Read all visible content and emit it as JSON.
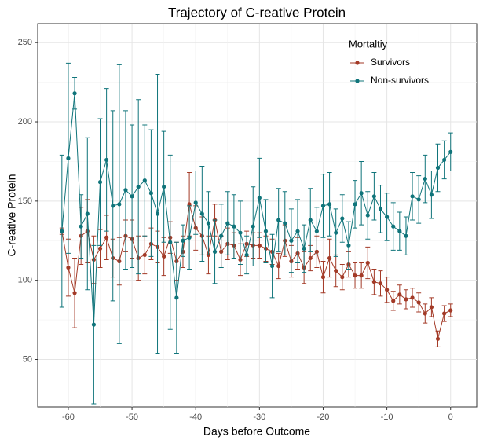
{
  "chart_data": {
    "type": "line-errorbar",
    "title": "Trajectory of C-reative Protein",
    "x_label": "Days before Outcome",
    "y_label": "C-reative Protein",
    "legend_title": "Mortaltiy",
    "legend_position": "top-right",
    "grid": true,
    "xlim": [
      -64.8,
      4.1
    ],
    "ylim": [
      20,
      262
    ],
    "xticks": [
      -60,
      -50,
      -40,
      -30,
      -20,
      -10,
      0
    ],
    "yticks": [
      50,
      100,
      150,
      200,
      250
    ],
    "x": [
      -61,
      -60,
      -59,
      -58,
      -57,
      -56,
      -55,
      -54,
      -53,
      -52,
      -51,
      -50,
      -49,
      -48,
      -47,
      -46,
      -45,
      -44,
      -43,
      -42,
      -41,
      -40,
      -39,
      -38,
      -37,
      -36,
      -35,
      -34,
      -33,
      -32,
      -31,
      -30,
      -29,
      -28,
      -27,
      -26,
      -25,
      -24,
      -23,
      -22,
      -21,
      -20,
      -19,
      -18,
      -17,
      -16,
      -15,
      -14,
      -13,
      -12,
      -11,
      -10,
      -9,
      -8,
      -7,
      -6,
      -5,
      -4,
      -3,
      -2,
      -1,
      0
    ],
    "series": [
      {
        "name": "Survivors",
        "color": "#a33a27",
        "values": [
          131,
          108,
          92,
          128,
          131,
          113,
          120,
          127,
          114,
          112,
          128,
          126,
          114,
          116,
          123,
          121,
          115,
          127,
          112,
          118,
          148,
          133,
          128,
          116,
          138,
          118,
          123,
          122,
          113,
          123,
          122,
          122,
          120,
          118,
          109,
          125,
          112,
          117,
          108,
          114,
          118,
          102,
          114,
          106,
          102,
          110,
          103,
          103,
          111,
          99,
          98,
          94,
          87,
          91,
          88,
          89,
          86,
          79,
          83,
          63,
          79,
          81
        ],
        "errors": [
          2,
          18,
          22,
          18,
          20,
          15,
          12,
          14,
          12,
          15,
          10,
          12,
          14,
          12,
          10,
          10,
          12,
          10,
          12,
          10,
          20,
          14,
          12,
          12,
          10,
          10,
          10,
          8,
          10,
          8,
          8,
          8,
          8,
          8,
          8,
          10,
          10,
          10,
          10,
          8,
          10,
          10,
          12,
          10,
          8,
          8,
          8,
          8,
          10,
          8,
          8,
          8,
          6,
          6,
          6,
          6,
          6,
          6,
          6,
          5,
          5,
          4
        ]
      },
      {
        "name": "Non-survivors",
        "color": "#0f747a",
        "values": [
          131,
          177,
          218,
          134,
          142,
          72,
          162,
          176,
          147,
          148,
          157,
          153,
          159,
          163,
          155,
          142,
          159,
          124,
          89,
          125,
          127,
          149,
          142,
          136,
          118,
          128,
          136,
          134,
          130,
          116,
          134,
          152,
          131,
          109,
          138,
          136,
          125,
          131,
          120,
          138,
          131,
          147,
          148,
          130,
          139,
          122,
          148,
          155,
          141,
          153,
          145,
          140,
          134,
          131,
          128,
          153,
          151,
          164,
          154,
          171,
          176,
          181
        ],
        "errors": [
          48,
          60,
          10,
          20,
          48,
          50,
          40,
          45,
          60,
          88,
          50,
          45,
          55,
          35,
          40,
          88,
          35,
          55,
          35,
          10,
          20,
          20,
          30,
          20,
          20,
          20,
          20,
          20,
          20,
          12,
          25,
          25,
          20,
          20,
          20,
          20,
          20,
          20,
          15,
          20,
          15,
          20,
          20,
          15,
          15,
          15,
          15,
          20,
          15,
          15,
          15,
          15,
          15,
          12,
          12,
          15,
          15,
          15,
          15,
          15,
          12,
          12
        ]
      }
    ]
  }
}
